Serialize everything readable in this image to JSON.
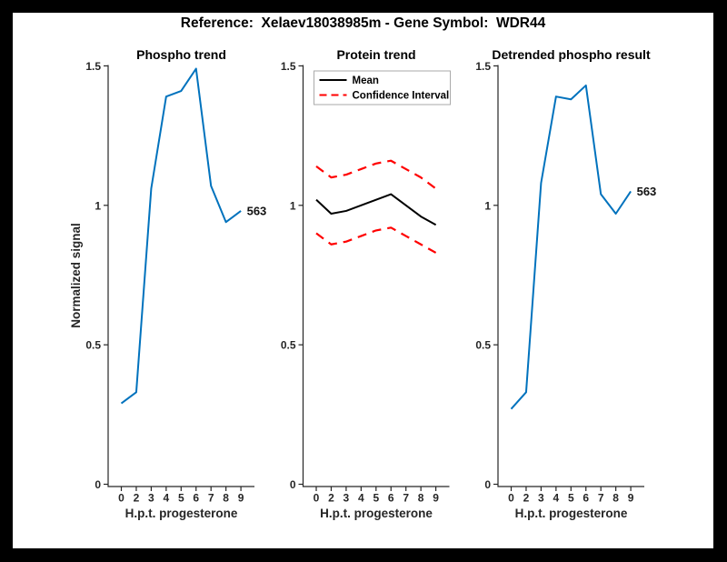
{
  "figure": {
    "title": "Reference:  Xelaev18038985m - Gene Symbol:  WDR44",
    "background": "#ffffff",
    "frame_color": "#000000"
  },
  "style": {
    "accent_blue": "#0072bd",
    "ci_red": "#ff0000",
    "mean_black": "#000000",
    "axis_color": "#262626"
  },
  "chart_data": [
    {
      "type": "line",
      "title": "Phospho trend",
      "xlabel": "H.p.t. progesterone",
      "ylabel": "Normalized signal",
      "categories": [
        "0",
        "2",
        "3",
        "4",
        "5",
        "6",
        "7",
        "8",
        "9"
      ],
      "yticks": [
        "0",
        "0.5",
        "1",
        "1.5"
      ],
      "ylim": [
        0,
        1.5
      ],
      "grid": false,
      "legend": null,
      "series": [
        {
          "name": "Phospho trend",
          "color": "#0072bd",
          "dash": null,
          "values": [
            0.29,
            0.33,
            1.06,
            1.39,
            1.41,
            1.49,
            1.07,
            0.94,
            0.98
          ]
        }
      ],
      "annotation": {
        "text": "563",
        "attach": "last-point"
      }
    },
    {
      "type": "line",
      "title": "Protein trend",
      "xlabel": "H.p.t. progesterone",
      "ylabel": "",
      "categories": [
        "0",
        "2",
        "3",
        "4",
        "5",
        "6",
        "7",
        "8",
        "9"
      ],
      "yticks": [
        "0",
        "0.5",
        "1",
        "1.5"
      ],
      "ylim": [
        0,
        1.5
      ],
      "grid": false,
      "legend": {
        "position": "top-left",
        "entries": [
          {
            "label": "Mean",
            "color": "#000000",
            "dash": null
          },
          {
            "label": "Confidence Interval",
            "color": "#ff0000",
            "dash": "8 5"
          }
        ]
      },
      "series": [
        {
          "name": "CI upper",
          "color": "#ff0000",
          "dash": "10 7",
          "values": [
            1.14,
            1.1,
            1.11,
            1.13,
            1.15,
            1.16,
            1.13,
            1.1,
            1.06
          ]
        },
        {
          "name": "CI lower",
          "color": "#ff0000",
          "dash": "10 7",
          "values": [
            0.9,
            0.86,
            0.87,
            0.89,
            0.91,
            0.92,
            0.89,
            0.86,
            0.83
          ]
        },
        {
          "name": "Mean",
          "color": "#000000",
          "dash": null,
          "values": [
            1.02,
            0.97,
            0.98,
            1.0,
            1.02,
            1.04,
            1.0,
            0.96,
            0.93
          ]
        }
      ],
      "annotation": null
    },
    {
      "type": "line",
      "title": "Detrended phospho result",
      "xlabel": "H.p.t. progesterone",
      "ylabel": "",
      "categories": [
        "0",
        "2",
        "3",
        "4",
        "5",
        "6",
        "7",
        "8",
        "9"
      ],
      "yticks": [
        "0",
        "0.5",
        "1",
        "1.5"
      ],
      "ylim": [
        0,
        1.5
      ],
      "grid": false,
      "legend": null,
      "series": [
        {
          "name": "Detrended phospho",
          "color": "#0072bd",
          "dash": null,
          "values": [
            0.27,
            0.33,
            1.08,
            1.39,
            1.38,
            1.43,
            1.04,
            0.97,
            1.05
          ]
        }
      ],
      "annotation": {
        "text": "563",
        "attach": "last-point"
      }
    }
  ]
}
